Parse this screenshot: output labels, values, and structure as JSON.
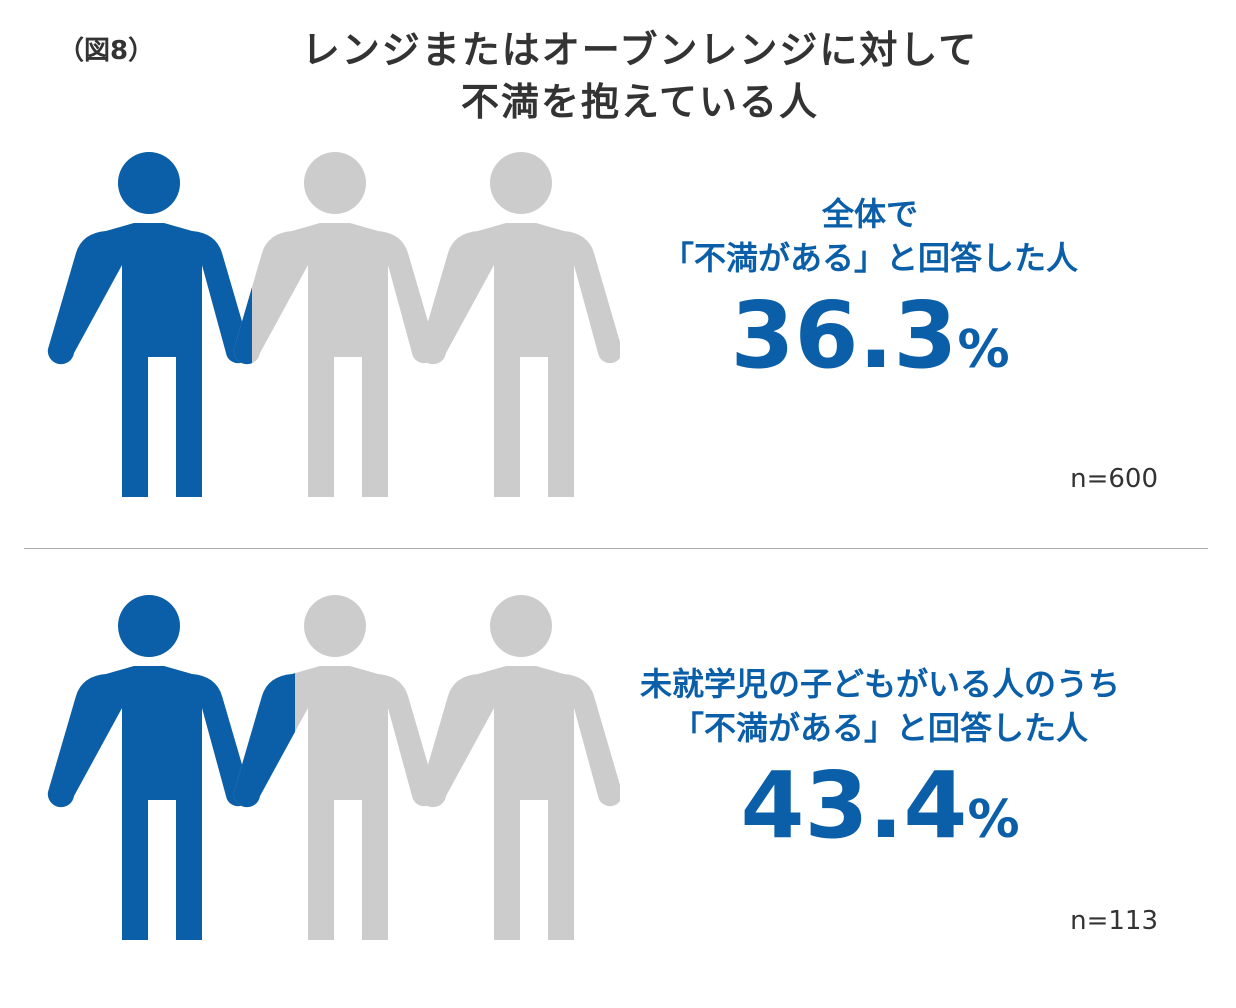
{
  "figure_label": "（図8）",
  "title_line1": "レンジまたはオーブンレンジに対して",
  "title_line2": "不満を抱えている人",
  "colors": {
    "highlight": "#0a5fa8",
    "base": "#cccccc",
    "text": "#333333"
  },
  "chart_data": [
    {
      "type": "pictogram",
      "icon": "person-icon",
      "icons_total": 3,
      "filled_fraction_of_total": 0.363,
      "label_line1": "全体で",
      "label_line2": "「不満がある」と回答した人",
      "value": "36.3",
      "unit": "%",
      "sample": "n=600"
    },
    {
      "type": "pictogram",
      "icon": "person-icon",
      "icons_total": 3,
      "filled_fraction_of_total": 0.434,
      "label_line1": "未就学児の子どもがいる人のうち",
      "label_line2": "「不満がある」と回答した人",
      "value": "43.4",
      "unit": "%",
      "sample": "n=113"
    }
  ]
}
